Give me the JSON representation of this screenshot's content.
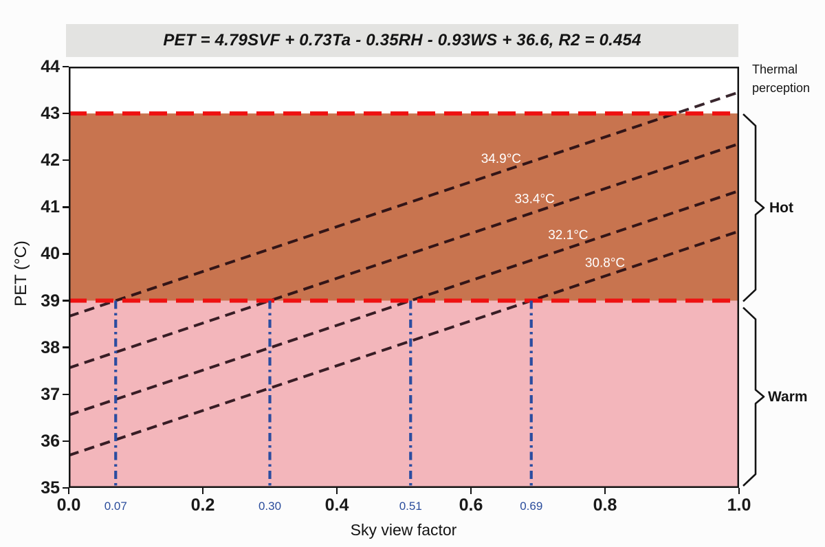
{
  "equation_banner": {
    "text": "PET = 4.79SVF + 0.73Ta - 0.35RH - 0.93WS + 36.6, R2 = 0.454",
    "background": "#e3e3e1"
  },
  "right_panel": {
    "title_line1": "Thermal",
    "title_line2": "perception",
    "hot_label": "Hot",
    "warm_label": "Warm"
  },
  "chart_data": {
    "type": "line",
    "title": "PET = 4.79SVF + 0.73Ta - 0.35RH - 0.93WS + 36.6, R2 = 0.454",
    "xlabel": "Sky view factor",
    "ylabel": "PET (°C)",
    "xlim": [
      0.0,
      1.0
    ],
    "ylim": [
      35,
      44
    ],
    "grid": false,
    "legend_position": "right",
    "x_ticks": [
      {
        "value": 0.0,
        "label": "0.0"
      },
      {
        "value": 0.2,
        "label": "0.2"
      },
      {
        "value": 0.4,
        "label": "0.4"
      },
      {
        "value": 0.6,
        "label": "0.6"
      },
      {
        "value": 0.8,
        "label": "0.8"
      },
      {
        "value": 1.0,
        "label": "1.0"
      }
    ],
    "y_ticks": [
      {
        "value": 35,
        "label": "35"
      },
      {
        "value": 36,
        "label": "36"
      },
      {
        "value": 37,
        "label": "37"
      },
      {
        "value": 38,
        "label": "38"
      },
      {
        "value": 39,
        "label": "39"
      },
      {
        "value": 40,
        "label": "40"
      },
      {
        "value": 41,
        "label": "41"
      },
      {
        "value": 42,
        "label": "42"
      },
      {
        "value": 43,
        "label": "43"
      },
      {
        "value": 44,
        "label": "44"
      }
    ],
    "slope_pet_per_svf": 4.79,
    "series": [
      {
        "name": "Ta = 34.9°C",
        "label": "34.9°C",
        "svf_at_pet39": 0.07,
        "pet_at_svf0": 38.66,
        "pet_at_svf1": 43.45,
        "label_x": 0.645
      },
      {
        "name": "Ta = 33.4°C",
        "label": "33.4°C",
        "svf_at_pet39": 0.3,
        "pet_at_svf0": 37.56,
        "pet_at_svf1": 42.35,
        "label_x": 0.695
      },
      {
        "name": "Ta = 32.1°C",
        "label": "32.1°C",
        "svf_at_pet39": 0.51,
        "pet_at_svf0": 36.56,
        "pet_at_svf1": 41.35,
        "label_x": 0.745
      },
      {
        "name": "Ta = 30.8°C",
        "label": "30.8°C",
        "svf_at_pet39": 0.69,
        "pet_at_svf0": 35.69,
        "pet_at_svf1": 40.49,
        "label_x": 0.8
      }
    ],
    "threshold_lines_pet": [
      39,
      43
    ],
    "svf_markers": [
      {
        "value": 0.07,
        "label": "0.07"
      },
      {
        "value": 0.3,
        "label": "0.30"
      },
      {
        "value": 0.51,
        "label": "0.51"
      },
      {
        "value": 0.69,
        "label": "0.69"
      }
    ],
    "zones": [
      {
        "label": "Hot",
        "pet_from": 39,
        "pet_to": 43,
        "fill": "#c8744f"
      },
      {
        "label": "Warm",
        "pet_from": 35,
        "pet_to": 39,
        "fill": "#f3b6bb"
      }
    ],
    "colors": {
      "threshold_line": "#ee1111",
      "iso_line": "#1e0810",
      "marker_line": "#2b4da0",
      "marker_label": "#2b4d9c",
      "axis": "#141414",
      "iso_label_text": "#ffffff"
    }
  }
}
